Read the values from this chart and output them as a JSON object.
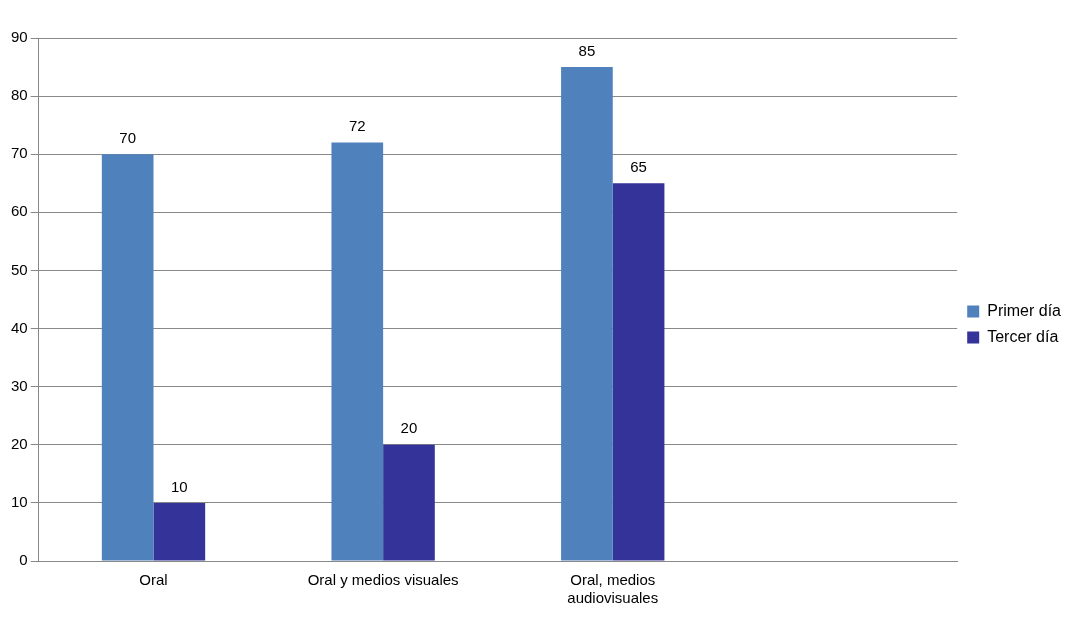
{
  "chart_data": {
    "type": "bar",
    "categories": [
      "Oral",
      "Oral y medios visuales",
      "Oral, medios audiovisuales",
      null
    ],
    "series": [
      {
        "name": "Primer día",
        "color": "#4f81bd",
        "values": [
          70,
          72,
          85,
          null
        ]
      },
      {
        "name": "Tercer día",
        "color": "#333399",
        "values": [
          10,
          20,
          65,
          null
        ]
      }
    ],
    "ylim": [
      0,
      90
    ],
    "yticks": [
      0,
      10,
      20,
      30,
      40,
      50,
      60,
      70,
      80,
      90
    ],
    "grid": "y",
    "legend": "right",
    "data_labels": true
  }
}
